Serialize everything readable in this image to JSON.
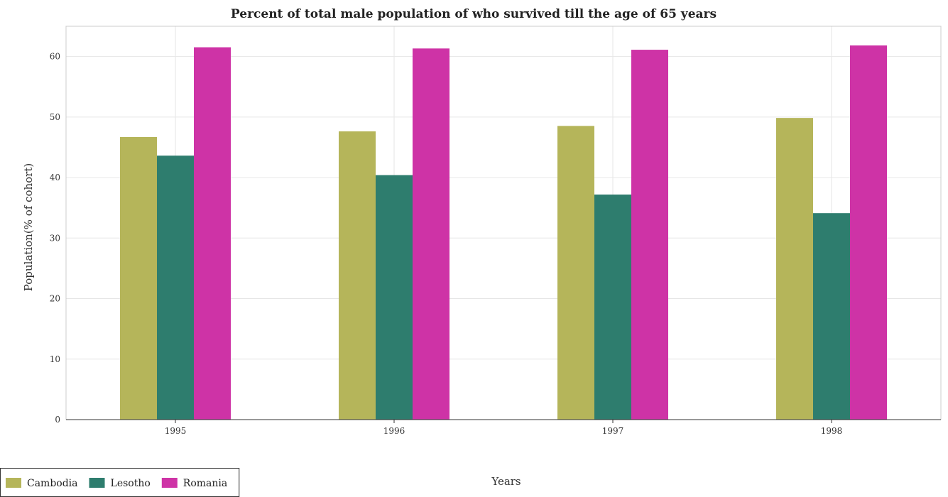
{
  "chart_data": {
    "type": "bar",
    "title": "Percent of total male population of who survived till the age of 65 years",
    "xlabel": "Years",
    "ylabel": "Population(% of cohort)",
    "categories": [
      "1995",
      "1996",
      "1997",
      "1998"
    ],
    "series": [
      {
        "name": "Cambodia",
        "color": "#b5b55a",
        "values": [
          46.7,
          47.63,
          48.53,
          49.85
        ]
      },
      {
        "name": "Lesotho",
        "color": "#2e7d6e",
        "values": [
          43.62,
          40.4,
          37.19,
          34.12
        ]
      },
      {
        "name": "Romania",
        "color": "#ce33a6",
        "values": [
          61.53,
          61.33,
          61.12,
          61.83
        ]
      }
    ],
    "ylim": [
      0,
      65
    ],
    "yticks": [
      0,
      10,
      20,
      30,
      40,
      50,
      60
    ],
    "grid": true,
    "legend_position": "bottom-left"
  }
}
